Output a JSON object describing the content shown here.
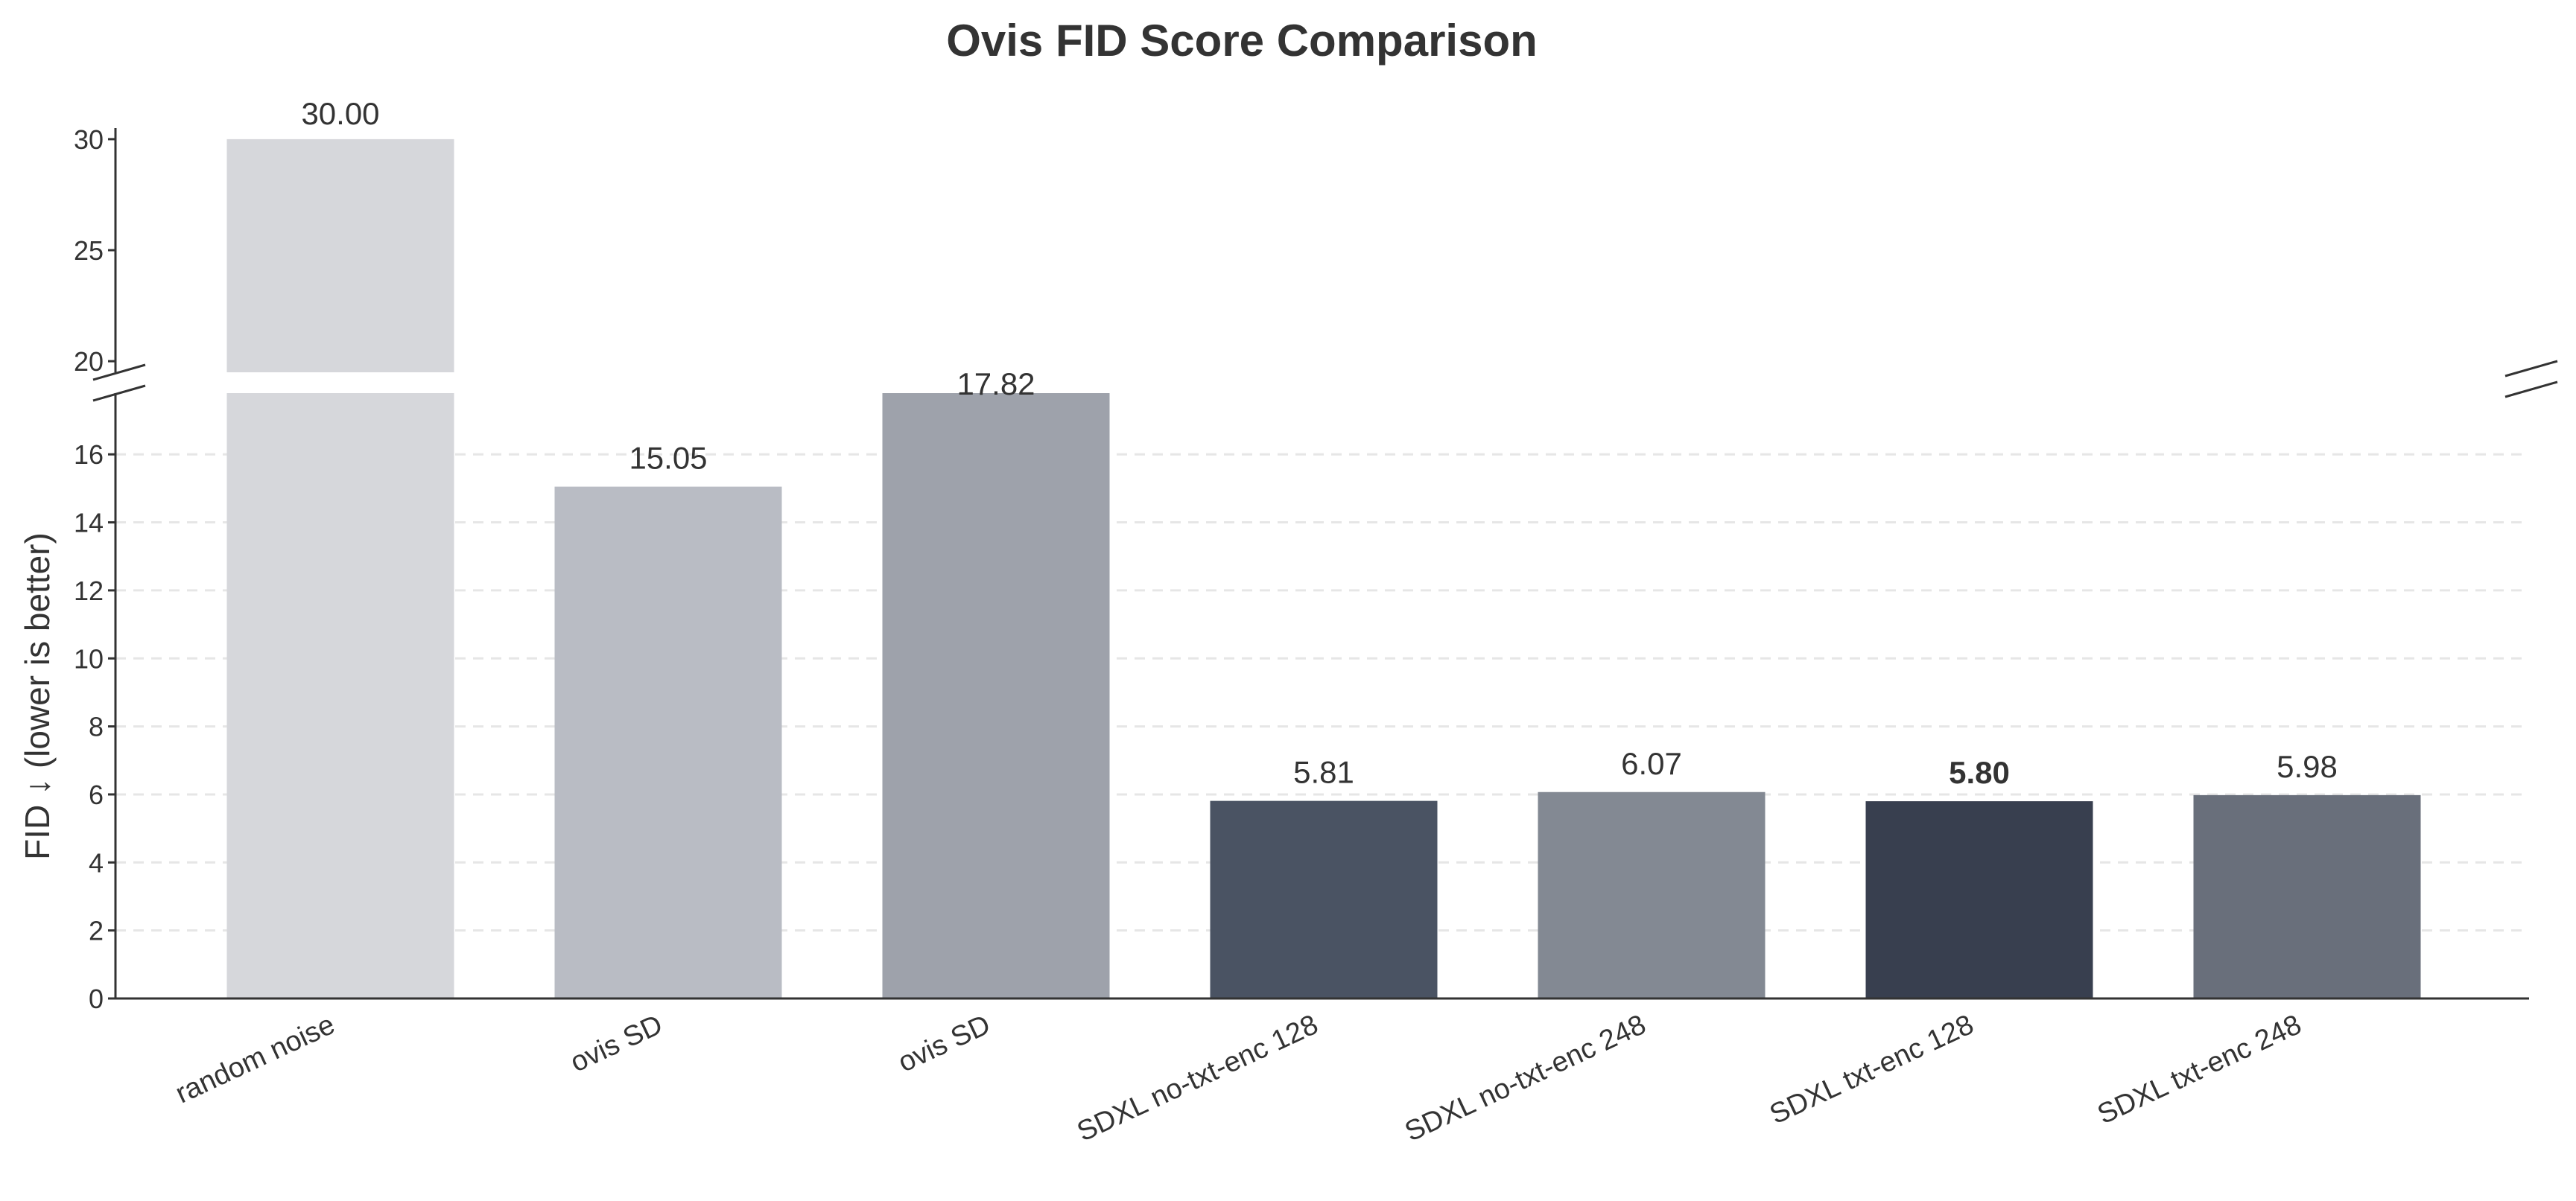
{
  "chart_data": {
    "type": "bar",
    "title": "Ovis FID Score Comparison",
    "xlabel": "",
    "ylabel": "FID ↓ (lower is better)",
    "categories": [
      "random noise",
      "ovis SD",
      "ovis SD",
      "SDXL no-txt-enc 128",
      "SDXL no-txt-enc 248",
      "SDXL txt-enc 128",
      "SDXL txt-enc 248"
    ],
    "values": [
      30.0,
      15.05,
      17.82,
      5.81,
      6.07,
      5.8,
      5.98
    ],
    "value_labels": [
      "30.00",
      "15.05",
      "17.82",
      "5.81",
      "6.07",
      "5.80",
      "5.98"
    ],
    "colors": [
      "#d6d7db",
      "#b9bcc4",
      "#9ea2ab",
      "#4a5363",
      "#838993",
      "#383f4f",
      "#696f7b"
    ],
    "best_index": 5,
    "broken_axis": true,
    "lower_ylim": [
      0,
      17.8
    ],
    "upper_ylim": [
      19.5,
      30.5
    ],
    "lower_yticks": [
      0,
      2,
      4,
      6,
      8,
      10,
      12,
      14,
      16
    ],
    "upper_yticks": [
      20,
      25,
      30
    ],
    "grid": "horizontal-dashed",
    "legend": "none"
  }
}
